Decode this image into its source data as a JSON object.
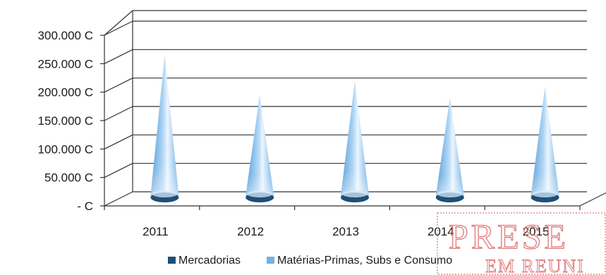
{
  "chart_data": {
    "type": "bar",
    "style": "3d-cone",
    "title": "",
    "xlabel": "",
    "ylabel": "",
    "categories": [
      "2011",
      "2012",
      "2013",
      "2014",
      "2015"
    ],
    "series": [
      {
        "name": "Mercadorias",
        "color": "#1f4e79",
        "values": [
          10000,
          8000,
          12000,
          18000,
          16000
        ]
      },
      {
        "name": "Matérias-Primas, Subs  e Consumo",
        "color": "#6fb3e8",
        "values": [
          255000,
          185000,
          210000,
          180000,
          200000
        ]
      }
    ],
    "ylim": [
      0,
      300000
    ],
    "yticks": [
      {
        "value": 0,
        "label": "- C"
      },
      {
        "value": 50000,
        "label": "50.000 C"
      },
      {
        "value": 100000,
        "label": "100.000 C"
      },
      {
        "value": 150000,
        "label": "150.000 C"
      },
      {
        "value": 200000,
        "label": "200.000 C"
      },
      {
        "value": 250000,
        "label": "250.000 C"
      },
      {
        "value": 300000,
        "label": "300.000 C"
      }
    ],
    "grid": true,
    "legend_position": "bottom"
  },
  "stamp": {
    "line1": "PRESE",
    "line2": "EM REUNI",
    "color": "#e07a7a"
  }
}
